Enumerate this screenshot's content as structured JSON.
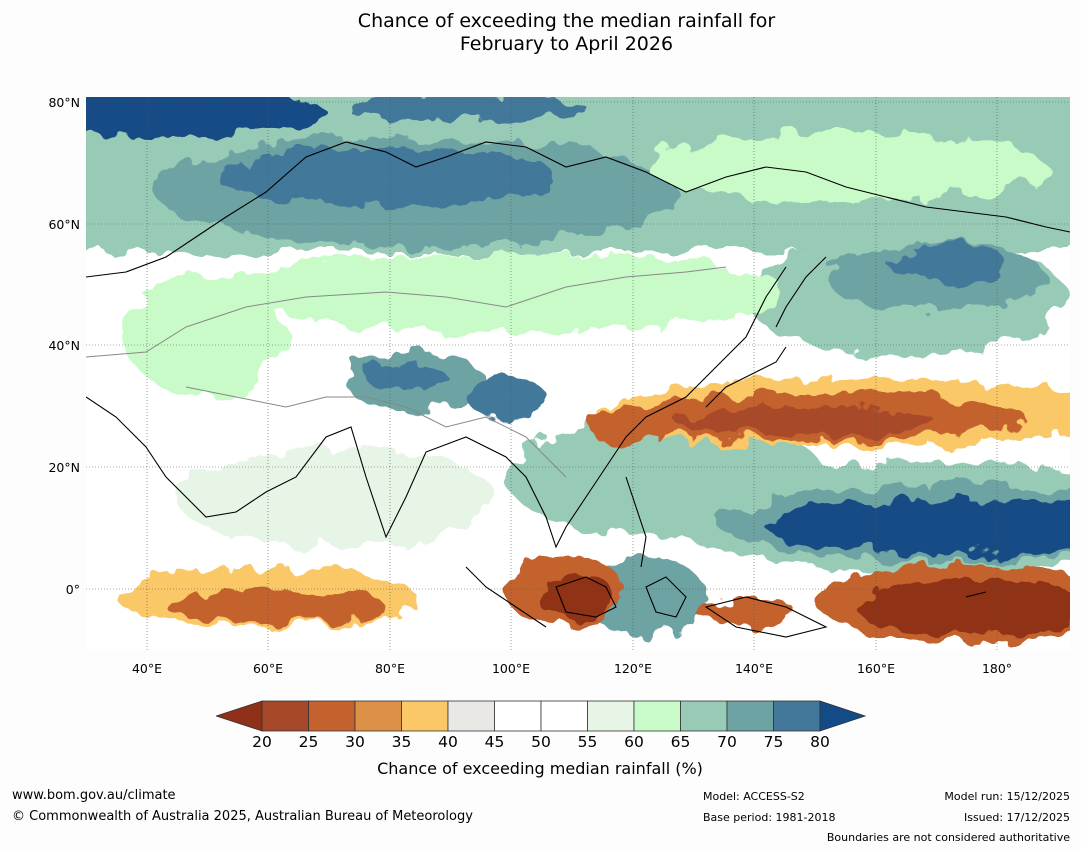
{
  "title": {
    "line1": "Chance of exceeding the median rainfall for",
    "line2": "February to April 2026"
  },
  "map": {
    "lat_labels": [
      "80°N",
      "60°N",
      "40°N",
      "20°N",
      "0°"
    ],
    "lon_labels": [
      "40°E",
      "60°E",
      "80°E",
      "100°E",
      "120°E",
      "140°E",
      "160°E",
      "180°"
    ],
    "lon_range": [
      30,
      192
    ],
    "lat_range": [
      -10,
      80
    ]
  },
  "colorbar": {
    "ticks": [
      "20",
      "25",
      "30",
      "35",
      "40",
      "45",
      "50",
      "55",
      "60",
      "65",
      "70",
      "75",
      "80"
    ],
    "colors": [
      "#a8482a",
      "#c4622f",
      "#dd9148",
      "#fbc868",
      "#eae8e5",
      "#ffffff",
      "#ffffff",
      "#e6f5e6",
      "#c9fbc9",
      "#98cbb6",
      "#6ea3a4",
      "#43789a"
    ],
    "low_extend_color": "#8f3019",
    "high_extend_color": "#124b86",
    "label": "Chance of exceeding median rainfall (%)"
  },
  "footer": {
    "url": "www.bom.gov.au/climate",
    "copyright": "© Commonwealth of Australia 2025, Australian Bureau of Meteorology",
    "model": "Model: ACCESS-S2",
    "base_period": "Base period: 1981-2018",
    "model_run": "Model run: 15/12/2025",
    "issued": "Issued: 17/12/2025",
    "disclaimer": "Boundaries are not considered authoritative"
  }
}
